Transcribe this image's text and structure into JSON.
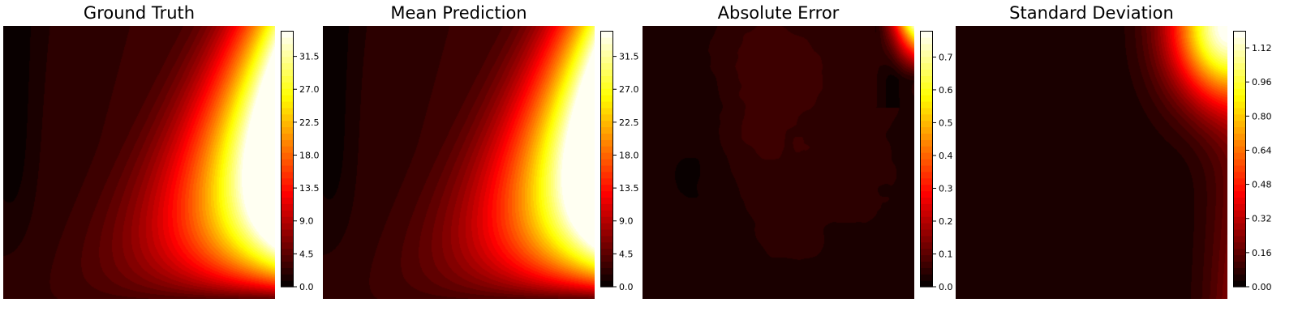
{
  "chart_data": [
    {
      "type": "heatmap",
      "title": "Ground Truth",
      "colormap": "hot",
      "levels": 40,
      "range": [
        0.0,
        35.0
      ],
      "colorbar_ticks": [
        "0.0",
        "4.5",
        "9.0",
        "13.5",
        "18.0",
        "22.5",
        "27.0",
        "31.5"
      ],
      "colorbar_tick_values": [
        0.0,
        4.5,
        9.0,
        13.5,
        18.0,
        22.5,
        27.0,
        31.5
      ],
      "axes_visible": false,
      "field_description": "minimum near left edge; values increase steeply toward top-right corner"
    },
    {
      "type": "heatmap",
      "title": "Mean Prediction",
      "colormap": "hot",
      "levels": 40,
      "range": [
        0.0,
        35.0
      ],
      "colorbar_ticks": [
        "0.0",
        "4.5",
        "9.0",
        "13.5",
        "18.0",
        "22.5",
        "27.0",
        "31.5"
      ],
      "colorbar_tick_values": [
        0.0,
        4.5,
        9.0,
        13.5,
        18.0,
        22.5,
        27.0,
        31.5
      ],
      "axes_visible": false,
      "field_description": "nearly identical to ground truth; maximum at top-right corner"
    },
    {
      "type": "heatmap",
      "title": "Absolute Error",
      "colormap": "hot",
      "levels": 40,
      "range": [
        0.0,
        0.78
      ],
      "colorbar_ticks": [
        "0.0",
        "0.1",
        "0.2",
        "0.3",
        "0.4",
        "0.5",
        "0.6",
        "0.7"
      ],
      "colorbar_tick_values": [
        0.0,
        0.1,
        0.2,
        0.3,
        0.4,
        0.5,
        0.6,
        0.7
      ],
      "axes_visible": false,
      "field_description": "low error everywhere, slightly higher in upper-middle, peak near top-right corner"
    },
    {
      "type": "heatmap",
      "title": "Standard Deviation",
      "colormap": "hot",
      "levels": 40,
      "range": [
        0.0,
        1.2
      ],
      "colorbar_ticks": [
        "0.00",
        "0.16",
        "0.32",
        "0.48",
        "0.64",
        "0.80",
        "0.96",
        "1.12"
      ],
      "colorbar_tick_values": [
        0.0,
        0.16,
        0.32,
        0.48,
        0.64,
        0.8,
        0.96,
        1.12
      ],
      "axes_visible": false,
      "field_description": "near zero except along right edge, maximum at top-right corner"
    }
  ]
}
